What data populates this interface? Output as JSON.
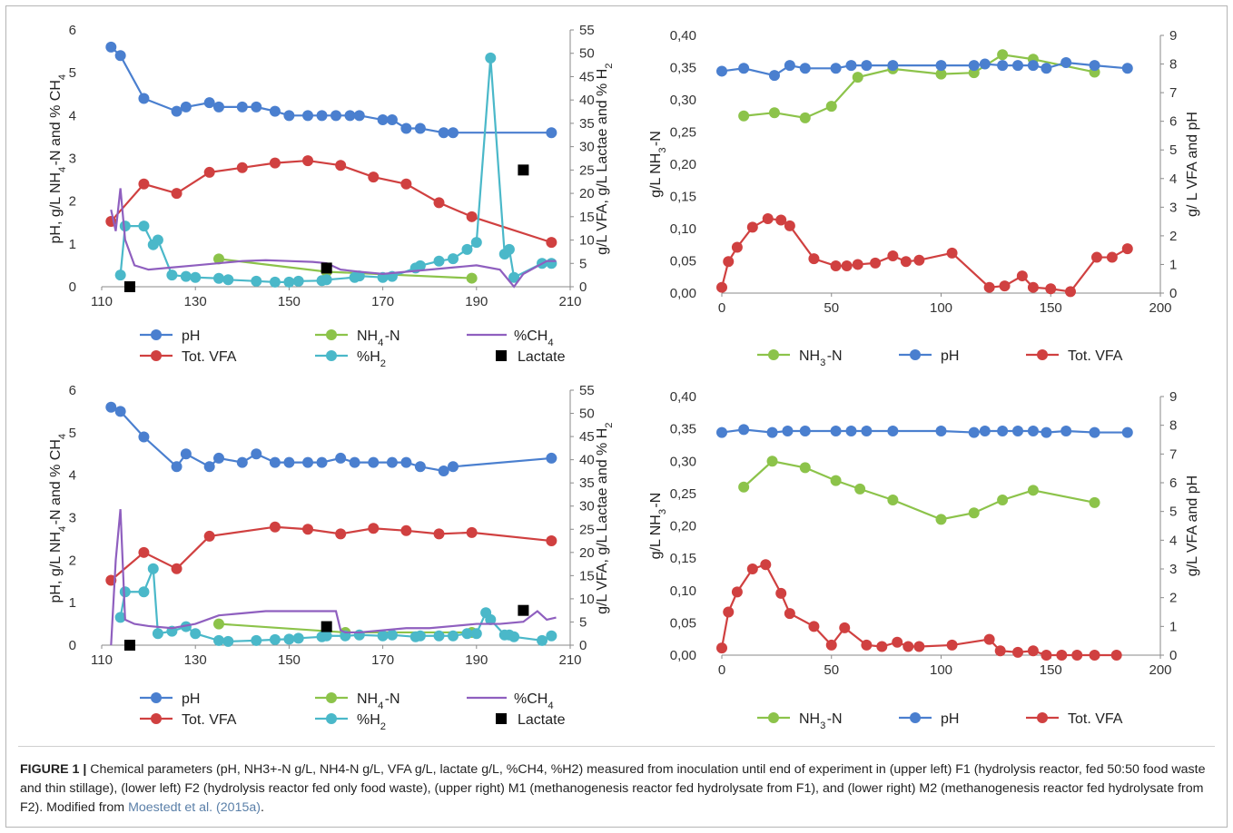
{
  "colors": {
    "pH": "#4a7fcf",
    "tvfa": "#d04040",
    "nh": "#8cc34a",
    "h2": "#4ab8c9",
    "ch4": "#8f5fbf",
    "lactate": "#000000"
  },
  "chart_data": [
    {
      "id": "F1",
      "type": "line",
      "xlim": [
        110,
        210
      ],
      "x_ticks": [
        "110",
        "130",
        "150",
        "170",
        "190",
        "210"
      ],
      "ylim_left": [
        0,
        6
      ],
      "y_left_ticks": [
        "0",
        "1",
        "2",
        "3",
        "4",
        "5",
        "6"
      ],
      "ylim_right": [
        0,
        55
      ],
      "y_right_ticks": [
        "0",
        "5",
        "10",
        "15",
        "20",
        "25",
        "30",
        "35",
        "40",
        "45",
        "50",
        "55"
      ],
      "ylabel_left": "pH, g/L NH4-N and % CH4",
      "ylabel_right": "g/L VFA, g/L Lactae and % H2",
      "legend": [
        "pH",
        "NH4-N",
        "%CH4",
        "Tot. VFA",
        "%H2",
        "Lactate"
      ],
      "series": [
        {
          "name": "pH",
          "axis": "left",
          "markers": true,
          "x": [
            112,
            114,
            119,
            126,
            128,
            133,
            135,
            140,
            143,
            147,
            150,
            154,
            157,
            160,
            163,
            165,
            170,
            172,
            175,
            178,
            183,
            185,
            206
          ],
          "y": [
            5.6,
            5.4,
            4.4,
            4.1,
            4.2,
            4.3,
            4.2,
            4.2,
            4.2,
            4.1,
            4.0,
            4.0,
            4.0,
            4.0,
            4.0,
            4.0,
            3.9,
            3.9,
            3.7,
            3.7,
            3.6,
            3.6,
            3.6
          ]
        },
        {
          "name": "Tot. VFA",
          "axis": "right",
          "markers": true,
          "x": [
            112,
            119,
            126,
            133,
            140,
            147,
            154,
            161,
            168,
            175,
            182,
            189,
            206
          ],
          "y": [
            14,
            22,
            20,
            24.5,
            25.5,
            26.5,
            27,
            26,
            23.5,
            22,
            18,
            15,
            9.5
          ]
        },
        {
          "name": "NH4-N",
          "axis": "left",
          "markers": true,
          "x": [
            135,
            158,
            189
          ],
          "y": [
            0.65,
            0.35,
            0.2
          ]
        },
        {
          "name": "%H2",
          "axis": "right",
          "markers": true,
          "x": [
            114,
            115,
            119,
            121,
            122,
            125,
            128,
            130,
            135,
            137,
            143,
            147,
            150,
            152,
            157,
            158,
            164,
            165,
            170,
            172,
            177,
            178,
            182,
            185,
            188,
            190,
            193,
            196,
            197,
            198,
            204,
            206
          ],
          "y": [
            2.5,
            13,
            13,
            9,
            10,
            2.5,
            2.2,
            2,
            1.8,
            1.5,
            1.2,
            1,
            1,
            1.2,
            1.3,
            1.5,
            2,
            2.3,
            2,
            2.2,
            4,
            4.5,
            5.5,
            6,
            8,
            9.5,
            49,
            7,
            8,
            2,
            5,
            5
          ]
        },
        {
          "name": "%CH4",
          "axis": "left",
          "markers": false,
          "x": [
            112,
            113,
            114,
            115,
            117,
            120,
            125,
            130,
            135,
            140,
            145,
            150,
            155,
            158,
            161,
            165,
            170,
            175,
            180,
            185,
            190,
            195,
            198,
            200,
            205,
            207
          ],
          "y": [
            1.8,
            1.3,
            2.3,
            1.1,
            0.5,
            0.4,
            0.45,
            0.5,
            0.55,
            0.6,
            0.62,
            0.6,
            0.58,
            0.55,
            0.4,
            0.35,
            0.3,
            0.35,
            0.4,
            0.45,
            0.5,
            0.4,
            0.0,
            0.3,
            0.6,
            0.6
          ]
        },
        {
          "name": "Lactate",
          "axis": "right",
          "markers": true,
          "x": [
            116,
            158,
            200
          ],
          "y": [
            0,
            4,
            25
          ]
        }
      ]
    },
    {
      "id": "M1",
      "type": "line",
      "xlim": [
        0,
        200
      ],
      "x_ticks": [
        "0",
        "50",
        "100",
        "150",
        "200"
      ],
      "ylim_left": [
        0,
        0.4
      ],
      "y_left_ticks": [
        "0,00",
        "0,05",
        "0,10",
        "0,15",
        "0,20",
        "0,25",
        "0,30",
        "0,35",
        "0,40"
      ],
      "ylim_right": [
        0,
        9
      ],
      "y_right_ticks": [
        "0",
        "1",
        "2",
        "3",
        "4",
        "5",
        "6",
        "7",
        "8",
        "9"
      ],
      "ylabel_left": "g/L NH3-N",
      "ylabel_right": "g/ L VFA and pH",
      "legend": [
        "NH3-N",
        "pH",
        "Tot. VFA"
      ],
      "series": [
        {
          "name": "NH3-N",
          "axis": "left",
          "markers": true,
          "x": [
            10,
            24,
            38,
            50,
            62,
            78,
            100,
            115,
            128,
            142,
            170
          ],
          "y": [
            0.275,
            0.28,
            0.272,
            0.29,
            0.335,
            0.348,
            0.34,
            0.342,
            0.37,
            0.363,
            0.343
          ]
        },
        {
          "name": "pH",
          "axis": "right",
          "markers": true,
          "x": [
            0,
            10,
            24,
            31,
            38,
            52,
            59,
            66,
            78,
            100,
            115,
            120,
            128,
            135,
            142,
            148,
            157,
            170,
            185
          ],
          "y": [
            7.75,
            7.85,
            7.6,
            7.95,
            7.85,
            7.85,
            7.95,
            7.95,
            7.95,
            7.95,
            7.95,
            8.0,
            7.95,
            7.95,
            7.95,
            7.85,
            8.05,
            7.95,
            7.85
          ]
        },
        {
          "name": "Tot. VFA",
          "axis": "right",
          "markers": true,
          "x": [
            0,
            3,
            7,
            14,
            21,
            27,
            31,
            42,
            52,
            57,
            62,
            70,
            78,
            84,
            90,
            105,
            122,
            129,
            137,
            142,
            150,
            159,
            171,
            178,
            185
          ],
          "y": [
            0.2,
            1.1,
            1.6,
            2.3,
            2.6,
            2.55,
            2.35,
            1.2,
            0.95,
            0.95,
            1.0,
            1.05,
            1.3,
            1.1,
            1.15,
            1.4,
            0.2,
            0.25,
            0.6,
            0.2,
            0.15,
            0.05,
            1.25,
            1.25,
            1.55
          ]
        }
      ]
    },
    {
      "id": "F2",
      "type": "line",
      "xlim": [
        110,
        210
      ],
      "x_ticks": [
        "110",
        "130",
        "150",
        "170",
        "190",
        "210"
      ],
      "ylim_left": [
        0,
        6
      ],
      "y_left_ticks": [
        "0",
        "1",
        "2",
        "3",
        "4",
        "5",
        "6"
      ],
      "ylim_right": [
        0,
        55
      ],
      "y_right_ticks": [
        "0",
        "5",
        "10",
        "15",
        "20",
        "25",
        "30",
        "35",
        "40",
        "45",
        "50",
        "55"
      ],
      "ylabel_left": "pH, g/L NH4-N and % CH4",
      "ylabel_right": "g/L VFA, g/L Lactae and % H2",
      "legend": [
        "pH",
        "NH4-N",
        "%CH4",
        "Tot. VFA",
        "%H2",
        "Lactate"
      ],
      "series": [
        {
          "name": "pH",
          "axis": "left",
          "markers": true,
          "x": [
            112,
            114,
            119,
            126,
            128,
            133,
            135,
            140,
            143,
            147,
            150,
            154,
            157,
            161,
            164,
            168,
            172,
            175,
            178,
            183,
            185,
            206
          ],
          "y": [
            5.6,
            5.5,
            4.9,
            4.2,
            4.5,
            4.2,
            4.4,
            4.3,
            4.5,
            4.3,
            4.3,
            4.3,
            4.3,
            4.4,
            4.3,
            4.3,
            4.3,
            4.3,
            4.2,
            4.1,
            4.2,
            4.4
          ]
        },
        {
          "name": "Tot. VFA",
          "axis": "right",
          "markers": true,
          "x": [
            112,
            119,
            126,
            133,
            147,
            154,
            161,
            168,
            175,
            182,
            189,
            206
          ],
          "y": [
            14,
            20,
            16.5,
            23.5,
            25.5,
            25,
            24,
            25.2,
            24.7,
            24,
            24.3,
            22.5
          ]
        },
        {
          "name": "NH4-N",
          "axis": "left",
          "markers": true,
          "x": [
            135,
            162,
            189
          ],
          "y": [
            0.5,
            0.3,
            0.3
          ]
        },
        {
          "name": "%H2",
          "axis": "right",
          "markers": true,
          "x": [
            114,
            115,
            119,
            121,
            122,
            125,
            128,
            130,
            135,
            137,
            143,
            147,
            150,
            152,
            157,
            158,
            162,
            165,
            170,
            172,
            177,
            178,
            182,
            185,
            188,
            190,
            192,
            193,
            196,
            197,
            198,
            204,
            206
          ],
          "y": [
            6,
            11.5,
            11.5,
            16.5,
            2.5,
            3,
            4,
            2.5,
            1,
            0.8,
            1,
            1.2,
            1.3,
            1.5,
            1.8,
            2,
            2,
            2.2,
            2,
            2.2,
            1.8,
            2,
            2,
            2,
            2.5,
            2.5,
            7,
            5.5,
            2.2,
            2.2,
            1.8,
            1,
            2
          ]
        },
        {
          "name": "%CH4",
          "axis": "left",
          "markers": false,
          "x": [
            112,
            113,
            114,
            115,
            117,
            120,
            125,
            130,
            135,
            140,
            145,
            150,
            155,
            160,
            161,
            162,
            165,
            170,
            175,
            180,
            185,
            190,
            195,
            200,
            203,
            205,
            207
          ],
          "y": [
            0.0,
            2.0,
            3.2,
            0.6,
            0.5,
            0.45,
            0.4,
            0.5,
            0.7,
            0.75,
            0.8,
            0.8,
            0.8,
            0.8,
            0.35,
            0.3,
            0.3,
            0.35,
            0.4,
            0.4,
            0.45,
            0.5,
            0.5,
            0.55,
            0.8,
            0.6,
            0.65
          ]
        },
        {
          "name": "Lactate",
          "axis": "right",
          "markers": true,
          "x": [
            116,
            158,
            200
          ],
          "y": [
            0,
            4,
            7.5
          ]
        }
      ]
    },
    {
      "id": "M2",
      "type": "line",
      "xlim": [
        0,
        200
      ],
      "x_ticks": [
        "0",
        "50",
        "100",
        "150",
        "200"
      ],
      "ylim_left": [
        0,
        0.4
      ],
      "y_left_ticks": [
        "0,00",
        "0,05",
        "0,10",
        "0,15",
        "0,20",
        "0,25",
        "0,30",
        "0,35",
        "0,40"
      ],
      "ylim_right": [
        0,
        9
      ],
      "y_right_ticks": [
        "0",
        "1",
        "2",
        "3",
        "4",
        "5",
        "6",
        "7",
        "8",
        "9"
      ],
      "ylabel_left": "g/L NH3-N",
      "ylabel_right": "g/L VFA and pH",
      "legend": [
        "NH3-N",
        "pH",
        "Tot. VFA"
      ],
      "series": [
        {
          "name": "NH3-N",
          "axis": "left",
          "markers": true,
          "x": [
            10,
            23,
            38,
            52,
            63,
            78,
            100,
            115,
            128,
            142,
            170
          ],
          "y": [
            0.26,
            0.3,
            0.29,
            0.27,
            0.257,
            0.24,
            0.21,
            0.22,
            0.24,
            0.255,
            0.236
          ]
        },
        {
          "name": "pH",
          "axis": "right",
          "markers": true,
          "x": [
            0,
            10,
            23,
            30,
            38,
            52,
            59,
            66,
            78,
            100,
            115,
            120,
            128,
            135,
            142,
            148,
            157,
            170,
            185
          ],
          "y": [
            7.75,
            7.85,
            7.75,
            7.8,
            7.8,
            7.8,
            7.8,
            7.8,
            7.8,
            7.8,
            7.75,
            7.8,
            7.8,
            7.8,
            7.8,
            7.75,
            7.8,
            7.75,
            7.75
          ]
        },
        {
          "name": "Tot. VFA",
          "axis": "right",
          "markers": true,
          "x": [
            0,
            3,
            7,
            14,
            20,
            27,
            31,
            42,
            50,
            56,
            66,
            73,
            80,
            85,
            90,
            105,
            122,
            127,
            135,
            142,
            148,
            155,
            162,
            170,
            180
          ],
          "y": [
            0.25,
            1.5,
            2.2,
            3.0,
            3.15,
            2.15,
            1.45,
            1.0,
            0.35,
            0.95,
            0.35,
            0.3,
            0.45,
            0.3,
            0.3,
            0.35,
            0.55,
            0.15,
            0.1,
            0.15,
            0.0,
            0.0,
            0.0,
            0.0,
            0.0
          ]
        }
      ]
    }
  ],
  "caption": {
    "label": "FIGURE 1 |",
    "text": " Chemical parameters (pH, NH3+-N g/L, NH4-N g/L, VFA g/L, lactate g/L, %CH4, %H2) measured from inoculation until end of experiment in (upper left) F1 (hydrolysis reactor, fed 50:50 food waste and thin stillage), (lower left) F2 (hydrolysis reactor fed only food waste), (upper right) M1 (methanogenesis reactor fed hydrolysate from F1), and (lower right) M2 (methanogenesis reactor fed hydrolysate from F2). Modified from ",
    "ref": "Moestedt et al. (2015a)",
    "tail": "."
  }
}
